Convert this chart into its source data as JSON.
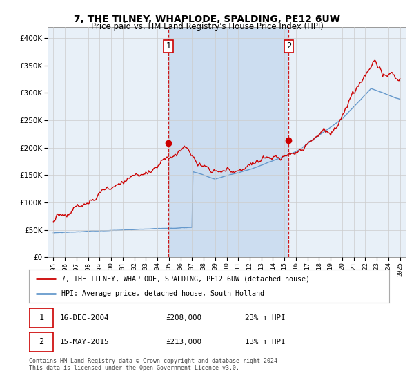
{
  "title": "7, THE TILNEY, WHAPLODE, SPALDING, PE12 6UW",
  "subtitle": "Price paid vs. HM Land Registry's House Price Index (HPI)",
  "legend_line1": "7, THE TILNEY, WHAPLODE, SPALDING, PE12 6UW (detached house)",
  "legend_line2": "HPI: Average price, detached house, South Holland",
  "annotation1_date": "16-DEC-2004",
  "annotation1_price": "£208,000",
  "annotation1_hpi": "23% ↑ HPI",
  "annotation2_date": "15-MAY-2015",
  "annotation2_price": "£213,000",
  "annotation2_hpi": "13% ↑ HPI",
  "footer": "Contains HM Land Registry data © Crown copyright and database right 2024.\nThis data is licensed under the Open Government Licence v3.0.",
  "sale1_x": 2004.96,
  "sale1_y": 208000,
  "sale2_x": 2015.37,
  "sale2_y": 213000,
  "ylim": [
    0,
    420000
  ],
  "xlim_start": 1994.5,
  "xlim_end": 2025.5,
  "red_color": "#cc0000",
  "blue_line_color": "#6699cc",
  "bg_color": "#e8f0f8",
  "shade_color": "#ccddf0",
  "plot_bg": "#ffffff",
  "vline_color": "#cc0000",
  "grid_color": "#cccccc",
  "title_fontsize": 10,
  "subtitle_fontsize": 8.5
}
